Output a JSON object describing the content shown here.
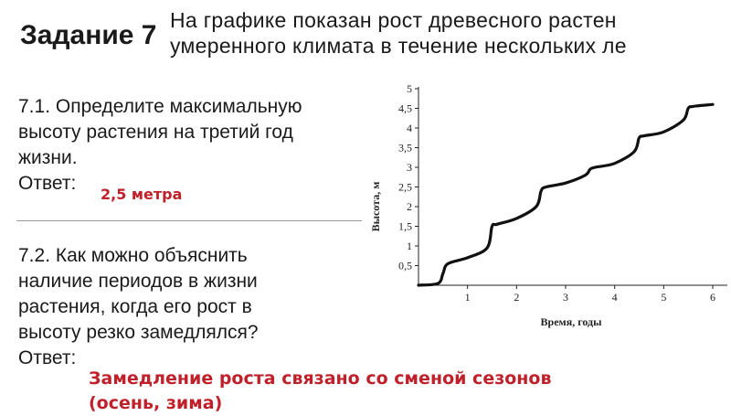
{
  "slide": {
    "title": "Задание 7",
    "header_line1": "На графике показан рост древесного растен",
    "header_line2": "умеренного климата в течение нескольких ле"
  },
  "q1": {
    "lines": [
      "7.1. Определите максимальную",
      "высоту растения на третий год",
      "жизни."
    ],
    "answer_label": "Ответ:",
    "answer": "2,5 метра"
  },
  "q2": {
    "lines": [
      "7.2. Как можно объяснить",
      "наличие периодов в жизни",
      "растения, когда его рост в",
      "высоту резко замедлялся?"
    ],
    "answer_label": "Ответ:",
    "answer_line1": "Замедление роста связано со сменой сезонов",
    "answer_line2": "(осень, зима)"
  },
  "chart_data": {
    "type": "line",
    "xlabel": "Время, годы",
    "ylabel": "Высота, м",
    "xlim": [
      0,
      6
    ],
    "ylim": [
      0,
      5
    ],
    "x_ticks": [
      "1",
      "2",
      "3",
      "4",
      "5",
      "6"
    ],
    "y_ticks": [
      "0,5",
      "1",
      "1,5",
      "2",
      "2,5",
      "3",
      "3,5",
      "4",
      "4,5",
      "5"
    ],
    "grid": false,
    "series": [
      {
        "x": [
          0,
          0.4,
          0.5,
          0.6,
          1.0,
          1.4,
          1.5,
          1.6,
          2.0,
          2.4,
          2.5,
          2.6,
          3.0,
          3.4,
          3.5,
          3.6,
          4.0,
          4.4,
          4.5,
          4.6,
          5.0,
          5.4,
          5.5,
          5.6,
          6.0
        ],
        "y": [
          0,
          0.05,
          0.3,
          0.55,
          0.7,
          0.95,
          1.5,
          1.55,
          1.7,
          2.0,
          2.4,
          2.5,
          2.6,
          2.8,
          2.95,
          3.0,
          3.1,
          3.4,
          3.75,
          3.8,
          3.9,
          4.2,
          4.5,
          4.55,
          4.6
        ]
      }
    ]
  }
}
